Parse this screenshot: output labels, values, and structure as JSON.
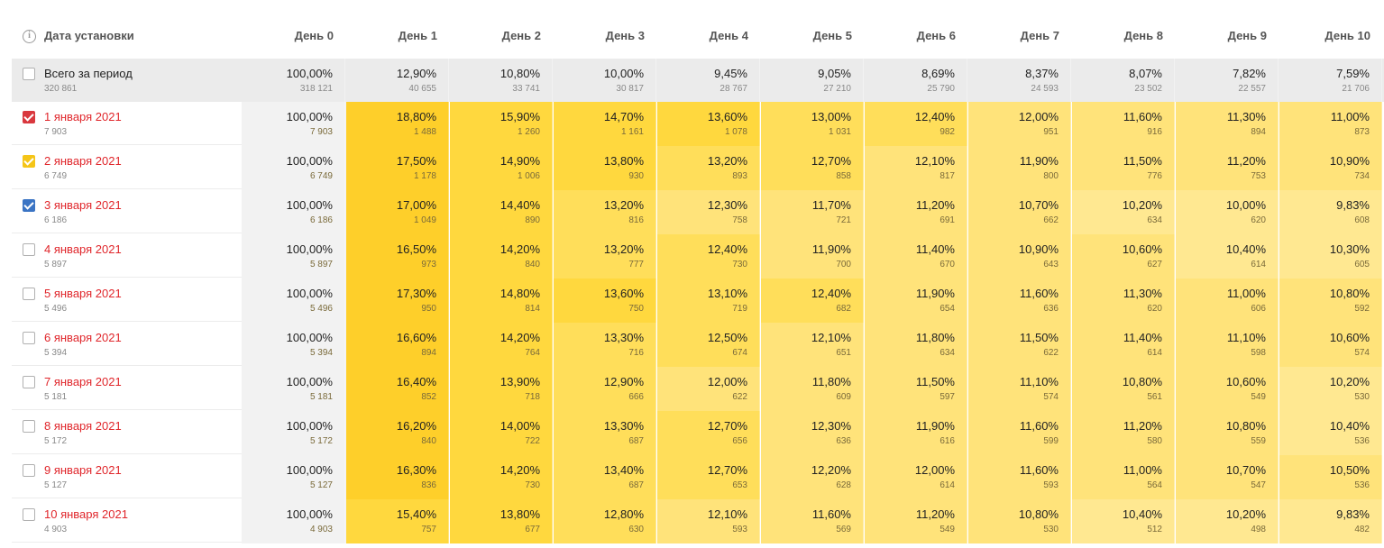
{
  "header": {
    "info_icon": "i",
    "date_col": "Дата установки",
    "days": [
      "День 0",
      "День 1",
      "День 2",
      "День 3",
      "День 4",
      "День 5",
      "День 6",
      "День 7",
      "День 8",
      "День 9",
      "День 10"
    ]
  },
  "total": {
    "label": "Всего за период",
    "count": "320 861",
    "cells": [
      {
        "pct": "100,00%",
        "abs": "318 121"
      },
      {
        "pct": "12,90%",
        "abs": "40 655"
      },
      {
        "pct": "10,80%",
        "abs": "33 741"
      },
      {
        "pct": "10,00%",
        "abs": "30 817"
      },
      {
        "pct": "9,45%",
        "abs": "28 767"
      },
      {
        "pct": "9,05%",
        "abs": "27 210"
      },
      {
        "pct": "8,69%",
        "abs": "25 790"
      },
      {
        "pct": "8,37%",
        "abs": "24 593"
      },
      {
        "pct": "8,07%",
        "abs": "23 502"
      },
      {
        "pct": "7,82%",
        "abs": "22 557"
      },
      {
        "pct": "7,59%",
        "abs": "21 706"
      }
    ]
  },
  "colors": {
    "heat": [
      "#fecf2a",
      "#ffd83e",
      "#ffde5a",
      "#ffe37a",
      "#ffe891"
    ],
    "checkbox_red": "#d9383e",
    "checkbox_yellow": "#f5c518",
    "checkbox_blue": "#3a74c4"
  },
  "rows": [
    {
      "label": "1 января 2021",
      "count": "7 903",
      "checkbox": "red",
      "cells": [
        {
          "pct": "100,00%",
          "abs": "7 903"
        },
        {
          "pct": "18,80%",
          "abs": "1 488"
        },
        {
          "pct": "15,90%",
          "abs": "1 260"
        },
        {
          "pct": "14,70%",
          "abs": "1 161"
        },
        {
          "pct": "13,60%",
          "abs": "1 078"
        },
        {
          "pct": "13,00%",
          "abs": "1 031"
        },
        {
          "pct": "12,40%",
          "abs": "982"
        },
        {
          "pct": "12,00%",
          "abs": "951"
        },
        {
          "pct": "11,60%",
          "abs": "916"
        },
        {
          "pct": "11,30%",
          "abs": "894"
        },
        {
          "pct": "11,00%",
          "abs": "873"
        }
      ]
    },
    {
      "label": "2 января 2021",
      "count": "6 749",
      "checkbox": "yellow",
      "cells": [
        {
          "pct": "100,00%",
          "abs": "6 749"
        },
        {
          "pct": "17,50%",
          "abs": "1 178"
        },
        {
          "pct": "14,90%",
          "abs": "1 006"
        },
        {
          "pct": "13,80%",
          "abs": "930"
        },
        {
          "pct": "13,20%",
          "abs": "893"
        },
        {
          "pct": "12,70%",
          "abs": "858"
        },
        {
          "pct": "12,10%",
          "abs": "817"
        },
        {
          "pct": "11,90%",
          "abs": "800"
        },
        {
          "pct": "11,50%",
          "abs": "776"
        },
        {
          "pct": "11,20%",
          "abs": "753"
        },
        {
          "pct": "10,90%",
          "abs": "734"
        }
      ]
    },
    {
      "label": "3 января 2021",
      "count": "6 186",
      "checkbox": "blue",
      "cells": [
        {
          "pct": "100,00%",
          "abs": "6 186"
        },
        {
          "pct": "17,00%",
          "abs": "1 049"
        },
        {
          "pct": "14,40%",
          "abs": "890"
        },
        {
          "pct": "13,20%",
          "abs": "816"
        },
        {
          "pct": "12,30%",
          "abs": "758"
        },
        {
          "pct": "11,70%",
          "abs": "721"
        },
        {
          "pct": "11,20%",
          "abs": "691"
        },
        {
          "pct": "10,70%",
          "abs": "662"
        },
        {
          "pct": "10,20%",
          "abs": "634"
        },
        {
          "pct": "10,00%",
          "abs": "620"
        },
        {
          "pct": "9,83%",
          "abs": "608"
        }
      ]
    },
    {
      "label": "4 января 2021",
      "count": "5 897",
      "checkbox": "none",
      "cells": [
        {
          "pct": "100,00%",
          "abs": "5 897"
        },
        {
          "pct": "16,50%",
          "abs": "973"
        },
        {
          "pct": "14,20%",
          "abs": "840"
        },
        {
          "pct": "13,20%",
          "abs": "777"
        },
        {
          "pct": "12,40%",
          "abs": "730"
        },
        {
          "pct": "11,90%",
          "abs": "700"
        },
        {
          "pct": "11,40%",
          "abs": "670"
        },
        {
          "pct": "10,90%",
          "abs": "643"
        },
        {
          "pct": "10,60%",
          "abs": "627"
        },
        {
          "pct": "10,40%",
          "abs": "614"
        },
        {
          "pct": "10,30%",
          "abs": "605"
        }
      ]
    },
    {
      "label": "5 января 2021",
      "count": "5 496",
      "checkbox": "none",
      "cells": [
        {
          "pct": "100,00%",
          "abs": "5 496"
        },
        {
          "pct": "17,30%",
          "abs": "950"
        },
        {
          "pct": "14,80%",
          "abs": "814"
        },
        {
          "pct": "13,60%",
          "abs": "750"
        },
        {
          "pct": "13,10%",
          "abs": "719"
        },
        {
          "pct": "12,40%",
          "abs": "682"
        },
        {
          "pct": "11,90%",
          "abs": "654"
        },
        {
          "pct": "11,60%",
          "abs": "636"
        },
        {
          "pct": "11,30%",
          "abs": "620"
        },
        {
          "pct": "11,00%",
          "abs": "606"
        },
        {
          "pct": "10,80%",
          "abs": "592"
        }
      ]
    },
    {
      "label": "6 января 2021",
      "count": "5 394",
      "checkbox": "none",
      "cells": [
        {
          "pct": "100,00%",
          "abs": "5 394"
        },
        {
          "pct": "16,60%",
          "abs": "894"
        },
        {
          "pct": "14,20%",
          "abs": "764"
        },
        {
          "pct": "13,30%",
          "abs": "716"
        },
        {
          "pct": "12,50%",
          "abs": "674"
        },
        {
          "pct": "12,10%",
          "abs": "651"
        },
        {
          "pct": "11,80%",
          "abs": "634"
        },
        {
          "pct": "11,50%",
          "abs": "622"
        },
        {
          "pct": "11,40%",
          "abs": "614"
        },
        {
          "pct": "11,10%",
          "abs": "598"
        },
        {
          "pct": "10,60%",
          "abs": "574"
        }
      ]
    },
    {
      "label": "7 января 2021",
      "count": "5 181",
      "checkbox": "none",
      "cells": [
        {
          "pct": "100,00%",
          "abs": "5 181"
        },
        {
          "pct": "16,40%",
          "abs": "852"
        },
        {
          "pct": "13,90%",
          "abs": "718"
        },
        {
          "pct": "12,90%",
          "abs": "666"
        },
        {
          "pct": "12,00%",
          "abs": "622"
        },
        {
          "pct": "11,80%",
          "abs": "609"
        },
        {
          "pct": "11,50%",
          "abs": "597"
        },
        {
          "pct": "11,10%",
          "abs": "574"
        },
        {
          "pct": "10,80%",
          "abs": "561"
        },
        {
          "pct": "10,60%",
          "abs": "549"
        },
        {
          "pct": "10,20%",
          "abs": "530"
        }
      ]
    },
    {
      "label": "8 января 2021",
      "count": "5 172",
      "checkbox": "none",
      "cells": [
        {
          "pct": "100,00%",
          "abs": "5 172"
        },
        {
          "pct": "16,20%",
          "abs": "840"
        },
        {
          "pct": "14,00%",
          "abs": "722"
        },
        {
          "pct": "13,30%",
          "abs": "687"
        },
        {
          "pct": "12,70%",
          "abs": "656"
        },
        {
          "pct": "12,30%",
          "abs": "636"
        },
        {
          "pct": "11,90%",
          "abs": "616"
        },
        {
          "pct": "11,60%",
          "abs": "599"
        },
        {
          "pct": "11,20%",
          "abs": "580"
        },
        {
          "pct": "10,80%",
          "abs": "559"
        },
        {
          "pct": "10,40%",
          "abs": "536"
        }
      ]
    },
    {
      "label": "9 января 2021",
      "count": "5 127",
      "checkbox": "none",
      "cells": [
        {
          "pct": "100,00%",
          "abs": "5 127"
        },
        {
          "pct": "16,30%",
          "abs": "836"
        },
        {
          "pct": "14,20%",
          "abs": "730"
        },
        {
          "pct": "13,40%",
          "abs": "687"
        },
        {
          "pct": "12,70%",
          "abs": "653"
        },
        {
          "pct": "12,20%",
          "abs": "628"
        },
        {
          "pct": "12,00%",
          "abs": "614"
        },
        {
          "pct": "11,60%",
          "abs": "593"
        },
        {
          "pct": "11,00%",
          "abs": "564"
        },
        {
          "pct": "10,70%",
          "abs": "547"
        },
        {
          "pct": "10,50%",
          "abs": "536"
        }
      ]
    },
    {
      "label": "10 января 2021",
      "count": "4 903",
      "checkbox": "none",
      "cells": [
        {
          "pct": "100,00%",
          "abs": "4 903"
        },
        {
          "pct": "15,40%",
          "abs": "757"
        },
        {
          "pct": "13,80%",
          "abs": "677"
        },
        {
          "pct": "12,80%",
          "abs": "630"
        },
        {
          "pct": "12,10%",
          "abs": "593"
        },
        {
          "pct": "11,60%",
          "abs": "569"
        },
        {
          "pct": "11,20%",
          "abs": "549"
        },
        {
          "pct": "10,80%",
          "abs": "530"
        },
        {
          "pct": "10,40%",
          "abs": "512"
        },
        {
          "pct": "10,20%",
          "abs": "498"
        },
        {
          "pct": "9,83%",
          "abs": "482"
        }
      ]
    }
  ]
}
